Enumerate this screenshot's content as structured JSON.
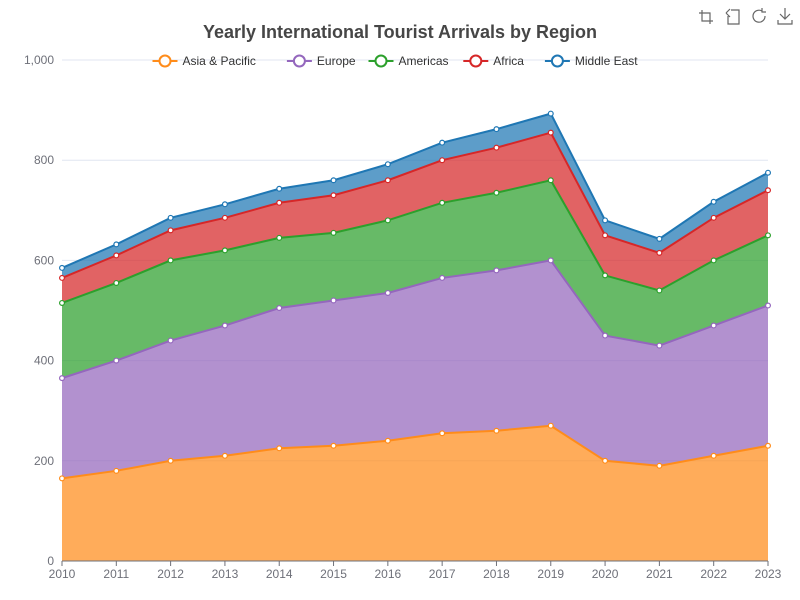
{
  "toolbox": {
    "icons": [
      "zoom-icon",
      "zoom-reset-icon",
      "restore-icon",
      "save-image-icon"
    ]
  },
  "chart_data": {
    "type": "area",
    "stacked": true,
    "title": "Yearly International Tourist Arrivals by Region",
    "xlabel": "",
    "ylabel": "",
    "x": [
      "2010",
      "2011",
      "2012",
      "2013",
      "2014",
      "2015",
      "2016",
      "2017",
      "2018",
      "2019",
      "2020",
      "2021",
      "2022",
      "2023"
    ],
    "ylim": [
      0,
      1000
    ],
    "yticks": [
      0,
      200,
      400,
      600,
      800,
      1000
    ],
    "ytick_labels": [
      "0",
      "200",
      "400",
      "600",
      "800",
      "1,000"
    ],
    "grid": true,
    "legend_position": "top-center",
    "series": [
      {
        "name": "Asia & Pacific",
        "color": "#ff8c1a",
        "values": [
          165,
          180,
          200,
          210,
          225,
          230,
          240,
          255,
          260,
          270,
          200,
          190,
          210,
          230
        ]
      },
      {
        "name": "Europe",
        "color": "#9467bd",
        "values": [
          200,
          220,
          240,
          260,
          280,
          290,
          295,
          310,
          320,
          330,
          250,
          240,
          260,
          280
        ]
      },
      {
        "name": "Americas",
        "color": "#2ca02c",
        "values": [
          150,
          155,
          160,
          150,
          140,
          135,
          145,
          150,
          155,
          160,
          120,
          110,
          130,
          140
        ]
      },
      {
        "name": "Africa",
        "color": "#d62728",
        "values": [
          50,
          55,
          60,
          65,
          70,
          75,
          80,
          85,
          90,
          95,
          80,
          75,
          85,
          90
        ]
      },
      {
        "name": "Middle East",
        "color": "#1f77b4",
        "values": [
          20,
          22,
          25,
          27,
          28,
          30,
          32,
          35,
          37,
          38,
          30,
          28,
          32,
          35
        ]
      }
    ]
  }
}
